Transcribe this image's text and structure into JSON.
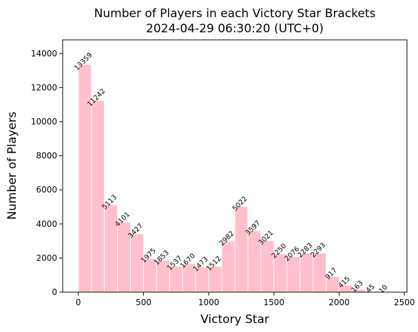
{
  "chart_data": {
    "type": "bar",
    "title": "Number of Players in each Victory Star Brackets",
    "subtitle": "2024-04-29 06:30:20 (UTC+0)",
    "xlabel": "Victory Star",
    "ylabel": "Number of Players",
    "bin_width": 100,
    "bins": [
      {
        "start": 0,
        "value": 13359
      },
      {
        "start": 100,
        "value": 11242
      },
      {
        "start": 200,
        "value": 5113
      },
      {
        "start": 300,
        "value": 4101
      },
      {
        "start": 400,
        "value": 3427
      },
      {
        "start": 500,
        "value": 1975
      },
      {
        "start": 600,
        "value": 1853
      },
      {
        "start": 700,
        "value": 1537
      },
      {
        "start": 800,
        "value": 1670
      },
      {
        "start": 900,
        "value": 1473
      },
      {
        "start": 1000,
        "value": 1512
      },
      {
        "start": 1100,
        "value": 2982
      },
      {
        "start": 1200,
        "value": 5022
      },
      {
        "start": 1300,
        "value": 3597
      },
      {
        "start": 1400,
        "value": 3021
      },
      {
        "start": 1500,
        "value": 2250
      },
      {
        "start": 1600,
        "value": 2076
      },
      {
        "start": 1700,
        "value": 2283
      },
      {
        "start": 1800,
        "value": 2293
      },
      {
        "start": 1900,
        "value": 917
      },
      {
        "start": 2000,
        "value": 415
      },
      {
        "start": 2100,
        "value": 163
      },
      {
        "start": 2200,
        "value": 45
      },
      {
        "start": 2300,
        "value": 10
      }
    ],
    "xlim": [
      -120,
      2520
    ],
    "ylim": [
      0,
      14800
    ],
    "xticks": [
      0,
      500,
      1000,
      1500,
      2000,
      2500
    ],
    "yticks": [
      0,
      2000,
      4000,
      6000,
      8000,
      10000,
      12000,
      14000
    ],
    "grid": false,
    "legend": "none",
    "colors": {
      "bar_fill": "#ffc0cb",
      "bar_edge": "#ffffff",
      "axis": "#000000"
    }
  }
}
